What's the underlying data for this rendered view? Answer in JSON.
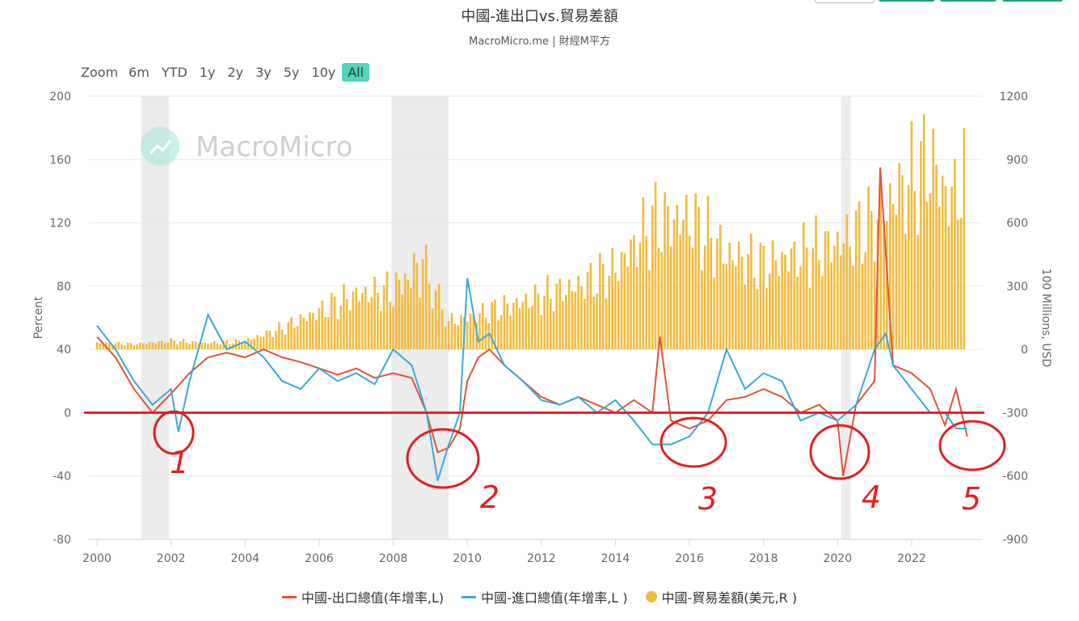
{
  "header": {
    "title": "中國-進出口vs.貿易差額",
    "subtitle": "MacroMicro.me | 財經M平方"
  },
  "range_selector": {
    "zoom_label": "Zoom",
    "buttons": [
      "6m",
      "YTD",
      "1y",
      "2y",
      "3y",
      "5y",
      "10y",
      "All"
    ],
    "active": "All"
  },
  "watermark": {
    "text": "MacroMicro"
  },
  "colors": {
    "export": "#e0533a",
    "import": "#3aa9d8",
    "balance": "#f0bb3c",
    "annotation": "#e02020",
    "recession_band": "#ececec",
    "accent": "#4fd6bd"
  },
  "annotations": {
    "marker_labels": [
      "1",
      "2",
      "3",
      "4",
      "5"
    ]
  },
  "legend": [
    {
      "label": "中國-出口總值(年增率,L)",
      "color": "#e0533a",
      "kind": "line"
    },
    {
      "label": "中國-進口總值(年增率,L )",
      "color": "#3aa9d8",
      "kind": "line"
    },
    {
      "label": "中國-貿易差額(美元,R )",
      "color": "#f0bb3c",
      "kind": "dot"
    }
  ],
  "chart_data": {
    "type": "line",
    "xlim": [
      2000,
      2023.9
    ],
    "x_ticks": [
      "2000",
      "2002",
      "2004",
      "2006",
      "2008",
      "2010",
      "2012",
      "2014",
      "2016",
      "2018",
      "2020",
      "2022"
    ],
    "y_left": {
      "label": "Percent",
      "lim": [
        -80,
        200
      ],
      "ticks": [
        "-80",
        "-40",
        "0",
        "40",
        "80",
        "120",
        "160",
        "200"
      ]
    },
    "y_right": {
      "label": "100 Millions, USD",
      "lim": [
        -900,
        1200
      ],
      "ticks": [
        "-900",
        "-600",
        "-300",
        "0",
        "300",
        "600",
        "900",
        "1200"
      ]
    },
    "recession_bands": [
      [
        2001.2,
        2001.95
      ],
      [
        2007.95,
        2009.5
      ],
      [
        2020.1,
        2020.35
      ]
    ],
    "zero_line": 0,
    "series": [
      {
        "name": "中國-出口總值(年增率,L)",
        "axis": "left",
        "x": [
          2000,
          2000.5,
          2001,
          2001.5,
          2002,
          2002.5,
          2003,
          2003.5,
          2004,
          2004.5,
          2005,
          2005.5,
          2006,
          2006.5,
          2007,
          2007.5,
          2008,
          2008.5,
          2008.9,
          2009.2,
          2009.5,
          2009.8,
          2010,
          2010.3,
          2010.6,
          2011,
          2011.5,
          2012,
          2012.5,
          2013,
          2013.5,
          2014,
          2014.5,
          2015,
          2015.2,
          2015.5,
          2016,
          2016.5,
          2017,
          2017.5,
          2018,
          2018.5,
          2019,
          2019.5,
          2020,
          2020.15,
          2020.5,
          2021,
          2021.15,
          2021.5,
          2022,
          2022.5,
          2022.9,
          2023.2,
          2023.5
        ],
        "y": [
          48,
          35,
          15,
          0,
          12,
          25,
          35,
          38,
          35,
          40,
          35,
          32,
          28,
          24,
          28,
          22,
          25,
          22,
          0,
          -25,
          -22,
          -10,
          20,
          35,
          40,
          30,
          20,
          10,
          5,
          10,
          5,
          0,
          8,
          0,
          48,
          -5,
          -10,
          -5,
          8,
          10,
          15,
          10,
          0,
          5,
          -5,
          -40,
          5,
          20,
          155,
          30,
          25,
          15,
          -8,
          15,
          -15
        ]
      },
      {
        "name": "中國-進口總值(年增率,L )",
        "axis": "left",
        "x": [
          2000,
          2000.5,
          2001,
          2001.5,
          2002,
          2002.2,
          2002.5,
          2003,
          2003.5,
          2004,
          2004.5,
          2005,
          2005.5,
          2006,
          2006.5,
          2007,
          2007.5,
          2008,
          2008.5,
          2008.9,
          2009.2,
          2009.5,
          2009.8,
          2010,
          2010.3,
          2010.6,
          2011,
          2011.5,
          2012,
          2012.5,
          2013,
          2013.5,
          2014,
          2014.5,
          2015,
          2015.5,
          2016,
          2016.5,
          2017,
          2017.5,
          2018,
          2018.5,
          2019,
          2019.5,
          2020,
          2020.5,
          2021,
          2021.3,
          2021.5,
          2022,
          2022.5,
          2022.9,
          2023.2,
          2023.5
        ],
        "y": [
          55,
          40,
          20,
          5,
          15,
          -12,
          20,
          62,
          40,
          45,
          35,
          20,
          15,
          28,
          20,
          25,
          18,
          40,
          30,
          0,
          -43,
          -20,
          0,
          85,
          45,
          50,
          30,
          20,
          8,
          5,
          10,
          0,
          8,
          -5,
          -20,
          -20,
          -15,
          0,
          40,
          15,
          25,
          20,
          -5,
          0,
          -5,
          5,
          40,
          50,
          30,
          15,
          0,
          0,
          -10,
          -10
        ]
      },
      {
        "name": "中國-貿易差額(美元,R )",
        "axis": "right",
        "type": "bar",
        "x": [
          2000,
          2001,
          2002,
          2003,
          2004,
          2005,
          2006,
          2007,
          2008,
          2008.8,
          2009.5,
          2010,
          2011,
          2012,
          2013,
          2014,
          2015,
          2016,
          2017,
          2018,
          2019,
          2020,
          2021,
          2021.5,
          2022,
          2022.5,
          2023,
          2023.5
        ],
        "y": [
          30,
          25,
          40,
          30,
          40,
          100,
          180,
          260,
          280,
          400,
          130,
          150,
          200,
          250,
          300,
          380,
          600,
          620,
          450,
          400,
          450,
          500,
          600,
          720,
          800,
          900,
          700,
          830
        ]
      }
    ]
  }
}
